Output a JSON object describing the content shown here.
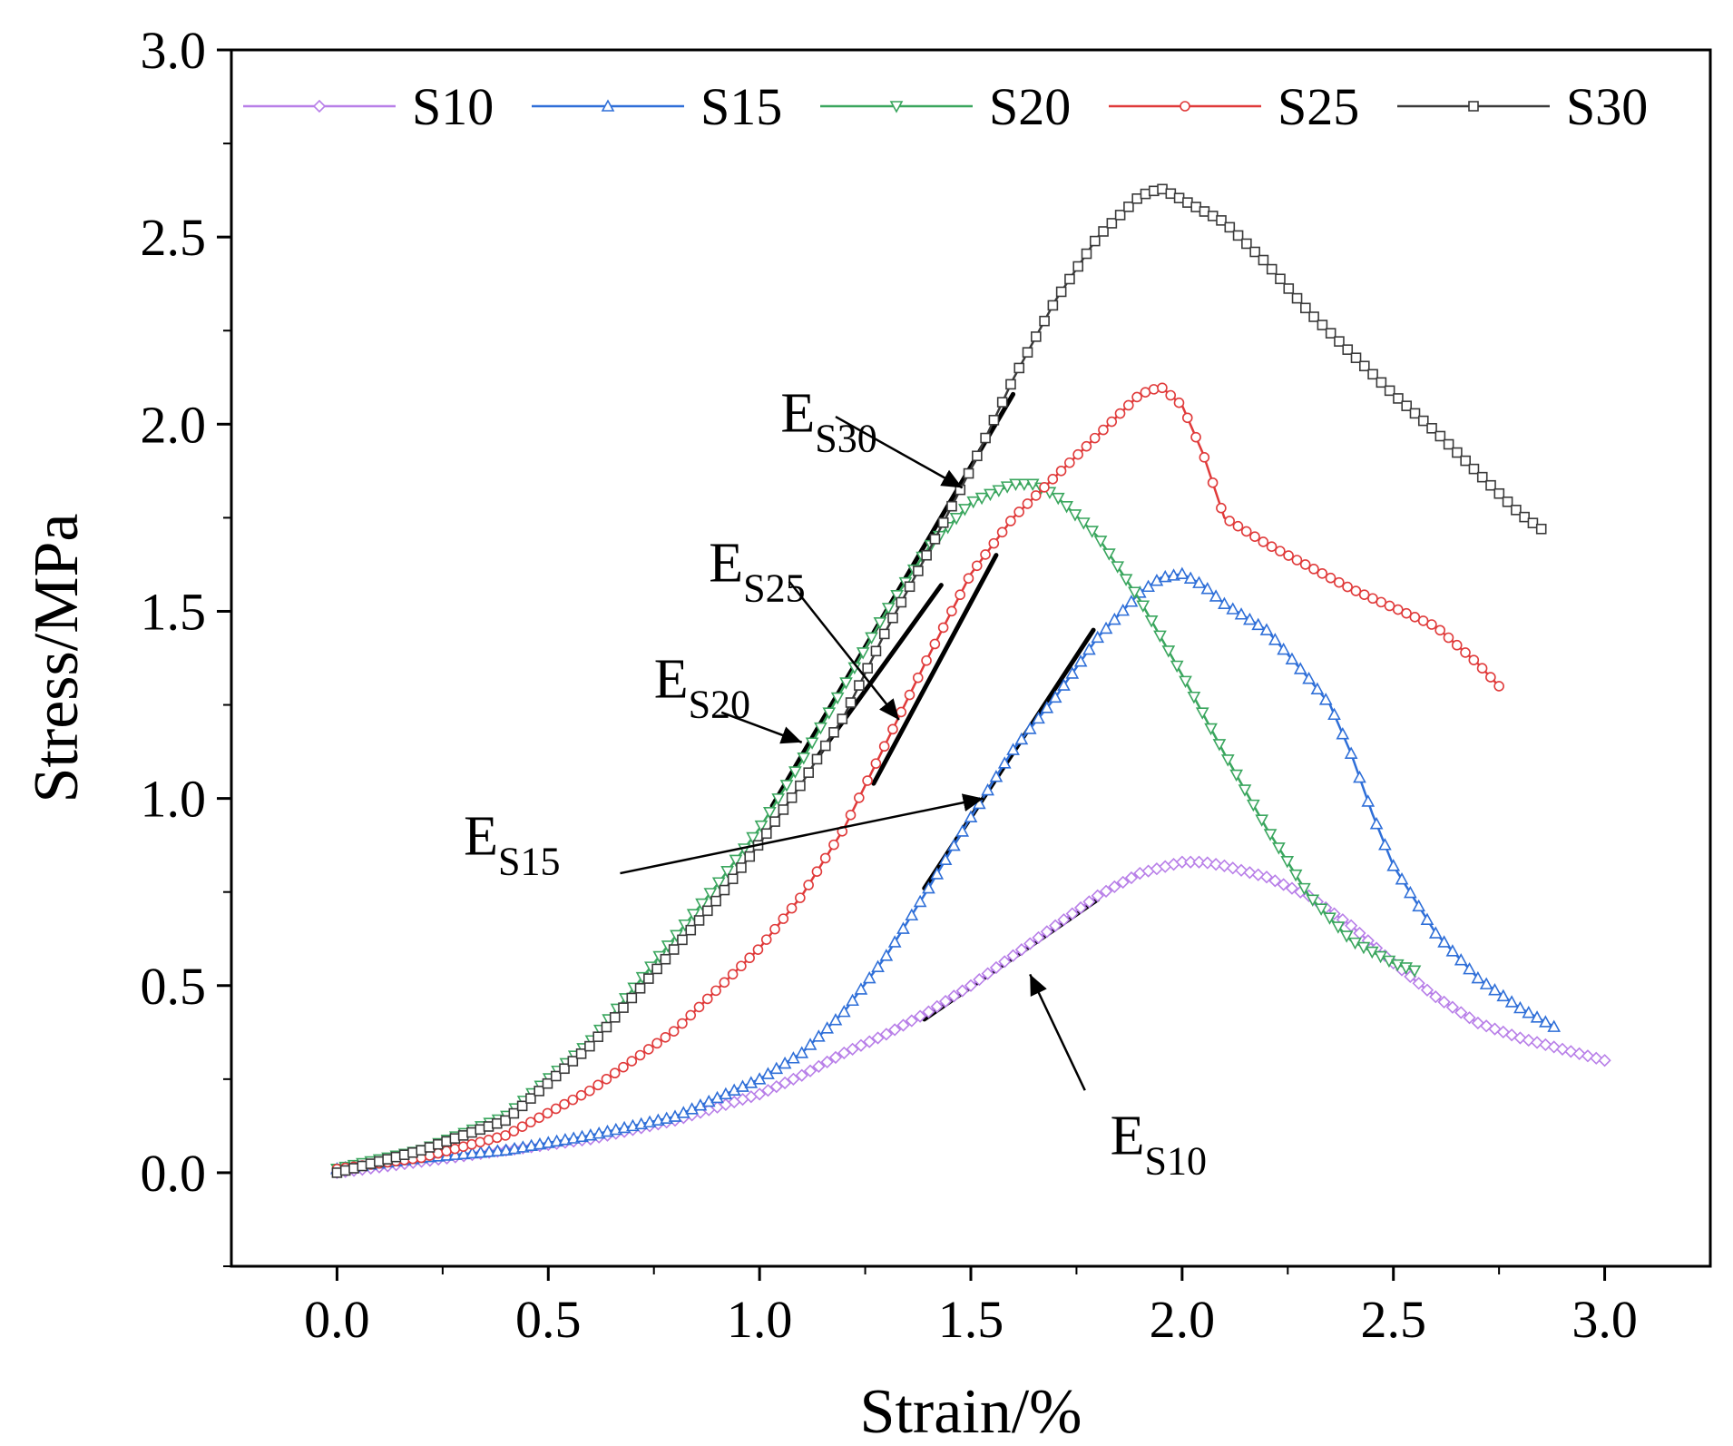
{
  "chart_data": {
    "type": "line",
    "title": "",
    "xlabel": "Strain/%",
    "ylabel": "Stress/MPa",
    "xlim": [
      -0.25,
      3.25
    ],
    "ylim": [
      -0.25,
      3.0
    ],
    "xticks": [
      0.0,
      0.5,
      1.0,
      1.5,
      2.0,
      2.5,
      3.0
    ],
    "yticks": [
      0.0,
      0.5,
      1.0,
      1.5,
      2.0,
      2.5,
      3.0
    ],
    "xtick_labels": [
      "0.0",
      "0.5",
      "1.0",
      "1.5",
      "2.0",
      "2.5",
      "3.0"
    ],
    "ytick_labels": [
      "0.0",
      "0.5",
      "1.0",
      "1.5",
      "2.0",
      "2.5",
      "3.0"
    ],
    "grid": false,
    "legend_position": "top",
    "series": [
      {
        "name": "S10",
        "color": "#b87fe8",
        "marker": "diamond",
        "points": [
          [
            0,
            0
          ],
          [
            0.2,
            0.03
          ],
          [
            0.4,
            0.06
          ],
          [
            0.6,
            0.09
          ],
          [
            0.8,
            0.14
          ],
          [
            1.0,
            0.21
          ],
          [
            1.1,
            0.26
          ],
          [
            1.2,
            0.32
          ],
          [
            1.3,
            0.37
          ],
          [
            1.4,
            0.43
          ],
          [
            1.5,
            0.5
          ],
          [
            1.6,
            0.58
          ],
          [
            1.7,
            0.66
          ],
          [
            1.8,
            0.74
          ],
          [
            1.9,
            0.8
          ],
          [
            2.0,
            0.83
          ],
          [
            2.05,
            0.83
          ],
          [
            2.1,
            0.82
          ],
          [
            2.2,
            0.79
          ],
          [
            2.3,
            0.74
          ],
          [
            2.4,
            0.66
          ],
          [
            2.5,
            0.56
          ],
          [
            2.6,
            0.47
          ],
          [
            2.7,
            0.4
          ],
          [
            2.8,
            0.36
          ],
          [
            2.9,
            0.33
          ],
          [
            3.0,
            0.3
          ]
        ]
      },
      {
        "name": "S15",
        "color": "#2f6fd8",
        "marker": "triangle-up",
        "points": [
          [
            0,
            0.01
          ],
          [
            0.2,
            0.04
          ],
          [
            0.4,
            0.06
          ],
          [
            0.6,
            0.1
          ],
          [
            0.8,
            0.15
          ],
          [
            1.0,
            0.25
          ],
          [
            1.1,
            0.32
          ],
          [
            1.2,
            0.43
          ],
          [
            1.3,
            0.58
          ],
          [
            1.4,
            0.76
          ],
          [
            1.5,
            0.95
          ],
          [
            1.6,
            1.13
          ],
          [
            1.7,
            1.27
          ],
          [
            1.8,
            1.43
          ],
          [
            1.9,
            1.55
          ],
          [
            1.95,
            1.59
          ],
          [
            2.0,
            1.6
          ],
          [
            2.05,
            1.57
          ],
          [
            2.1,
            1.52
          ],
          [
            2.2,
            1.45
          ],
          [
            2.3,
            1.32
          ],
          [
            2.35,
            1.25
          ],
          [
            2.4,
            1.12
          ],
          [
            2.45,
            0.96
          ],
          [
            2.5,
            0.82
          ],
          [
            2.6,
            0.64
          ],
          [
            2.7,
            0.52
          ],
          [
            2.8,
            0.44
          ],
          [
            2.88,
            0.39
          ]
        ]
      },
      {
        "name": "S20",
        "color": "#3aa65e",
        "marker": "triangle-down",
        "points": [
          [
            0,
            0.01
          ],
          [
            0.2,
            0.06
          ],
          [
            0.4,
            0.15
          ],
          [
            0.6,
            0.35
          ],
          [
            0.8,
            0.63
          ],
          [
            0.9,
            0.77
          ],
          [
            1.0,
            0.92
          ],
          [
            1.1,
            1.1
          ],
          [
            1.2,
            1.3
          ],
          [
            1.3,
            1.5
          ],
          [
            1.4,
            1.67
          ],
          [
            1.5,
            1.79
          ],
          [
            1.6,
            1.84
          ],
          [
            1.65,
            1.84
          ],
          [
            1.7,
            1.81
          ],
          [
            1.8,
            1.7
          ],
          [
            1.9,
            1.53
          ],
          [
            2.0,
            1.33
          ],
          [
            2.1,
            1.12
          ],
          [
            2.2,
            0.92
          ],
          [
            2.3,
            0.74
          ],
          [
            2.4,
            0.62
          ],
          [
            2.5,
            0.56
          ],
          [
            2.55,
            0.54
          ]
        ]
      },
      {
        "name": "S25",
        "color": "#e03a3a",
        "marker": "circle",
        "points": [
          [
            0,
            0.01
          ],
          [
            0.2,
            0.04
          ],
          [
            0.4,
            0.1
          ],
          [
            0.6,
            0.22
          ],
          [
            0.8,
            0.38
          ],
          [
            1.0,
            0.6
          ],
          [
            1.1,
            0.74
          ],
          [
            1.2,
            0.92
          ],
          [
            1.3,
            1.15
          ],
          [
            1.4,
            1.38
          ],
          [
            1.5,
            1.6
          ],
          [
            1.6,
            1.75
          ],
          [
            1.7,
            1.86
          ],
          [
            1.8,
            1.97
          ],
          [
            1.9,
            2.08
          ],
          [
            1.95,
            2.1
          ],
          [
            2.0,
            2.05
          ],
          [
            2.05,
            1.92
          ],
          [
            2.1,
            1.75
          ],
          [
            2.2,
            1.68
          ],
          [
            2.3,
            1.62
          ],
          [
            2.4,
            1.56
          ],
          [
            2.5,
            1.51
          ],
          [
            2.6,
            1.46
          ],
          [
            2.7,
            1.36
          ],
          [
            2.75,
            1.3
          ]
        ]
      },
      {
        "name": "S30",
        "color": "#3a3a3a",
        "marker": "square",
        "points": [
          [
            0,
            0
          ],
          [
            0.2,
            0.06
          ],
          [
            0.4,
            0.14
          ],
          [
            0.6,
            0.34
          ],
          [
            0.8,
            0.6
          ],
          [
            0.9,
            0.73
          ],
          [
            1.0,
            0.88
          ],
          [
            1.1,
            1.04
          ],
          [
            1.2,
            1.22
          ],
          [
            1.3,
            1.45
          ],
          [
            1.4,
            1.66
          ],
          [
            1.5,
            1.88
          ],
          [
            1.6,
            2.12
          ],
          [
            1.7,
            2.33
          ],
          [
            1.8,
            2.5
          ],
          [
            1.9,
            2.61
          ],
          [
            1.95,
            2.63
          ],
          [
            2.0,
            2.6
          ],
          [
            2.1,
            2.54
          ],
          [
            2.2,
            2.43
          ],
          [
            2.3,
            2.3
          ],
          [
            2.4,
            2.19
          ],
          [
            2.5,
            2.08
          ],
          [
            2.6,
            1.98
          ],
          [
            2.7,
            1.87
          ],
          [
            2.8,
            1.76
          ],
          [
            2.85,
            1.72
          ]
        ]
      }
    ],
    "annotations": [
      {
        "id": "E_S30",
        "text": "E",
        "sub": "S30",
        "label_at": [
          1.05,
          1.98
        ],
        "arrow_from": [
          1.18,
          2.02
        ],
        "arrow_to": [
          1.48,
          1.83
        ]
      },
      {
        "id": "E_S25",
        "text": "E",
        "sub": "S25",
        "label_at": [
          0.88,
          1.58
        ],
        "arrow_from": [
          1.07,
          1.58
        ],
        "arrow_to": [
          1.33,
          1.21
        ]
      },
      {
        "id": "E_S20",
        "text": "E",
        "sub": "S20",
        "label_at": [
          0.75,
          1.27
        ],
        "arrow_from": [
          0.91,
          1.23
        ],
        "arrow_to": [
          1.1,
          1.15
        ]
      },
      {
        "id": "E_S15",
        "text": "E",
        "sub": "S15",
        "label_at": [
          0.3,
          0.85
        ],
        "arrow_from": [
          0.67,
          0.8
        ],
        "arrow_to": [
          1.53,
          1.0
        ]
      },
      {
        "id": "E_S10",
        "text": "E",
        "sub": "S10",
        "label_at": [
          1.83,
          0.05
        ],
        "arrow_from": [
          1.77,
          0.22
        ],
        "arrow_to": [
          1.64,
          0.53
        ]
      }
    ],
    "tangent_lines": [
      {
        "series": "S30",
        "from": [
          1.03,
          0.98
        ],
        "to": [
          1.6,
          2.08
        ]
      },
      {
        "series": "S20",
        "from": [
          1.13,
          1.1
        ],
        "to": [
          1.43,
          1.57
        ]
      },
      {
        "series": "S25",
        "from": [
          1.27,
          1.04
        ],
        "to": [
          1.56,
          1.65
        ]
      },
      {
        "series": "S15",
        "from": [
          1.39,
          0.76
        ],
        "to": [
          1.79,
          1.45
        ]
      },
      {
        "series": "S10",
        "from": [
          1.39,
          0.41
        ],
        "to": [
          1.8,
          0.73
        ]
      }
    ]
  }
}
